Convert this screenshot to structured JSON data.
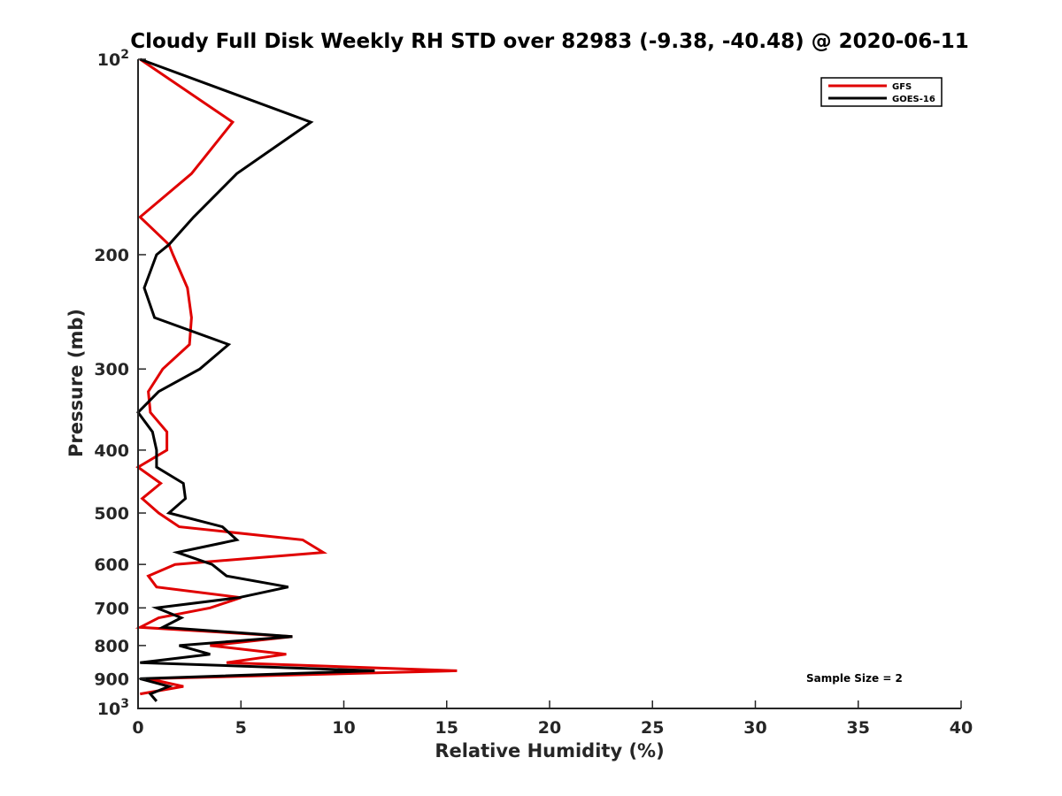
{
  "chart_data": {
    "type": "line",
    "title": "Cloudy Full Disk Weekly RH STD over 82983 (-9.38, -40.48) @ 2020-06-11",
    "xlabel": "Relative Humidity (%)",
    "ylabel": "Pressure (mb)",
    "xlim": [
      0,
      40
    ],
    "ylim": [
      100,
      1000
    ],
    "y_scale": "log",
    "y_reversed": true,
    "grid": false,
    "legend_placement": "top-right",
    "x_ticks": [
      "0",
      "5",
      "10",
      "15",
      "20",
      "25",
      "30",
      "35",
      "40"
    ],
    "y_ticks": [
      {
        "value": 100,
        "base": "10",
        "exp": "2"
      },
      {
        "value": 200,
        "label": "200"
      },
      {
        "value": 300,
        "label": "300"
      },
      {
        "value": 400,
        "label": "400"
      },
      {
        "value": 500,
        "label": "500"
      },
      {
        "value": 600,
        "label": "600"
      },
      {
        "value": 700,
        "label": "700"
      },
      {
        "value": 800,
        "label": "800"
      },
      {
        "value": 900,
        "label": "900"
      },
      {
        "value": 1000,
        "base": "10",
        "exp": "3"
      }
    ],
    "annotation": "Sample Size = 2",
    "series": [
      {
        "name": "GFS",
        "color": "#e00000",
        "points": [
          [
            0.1,
            100
          ],
          [
            4.6,
            125
          ],
          [
            2.6,
            150
          ],
          [
            0.1,
            175
          ],
          [
            1.5,
            193
          ],
          [
            1.7,
            200
          ],
          [
            2.4,
            225
          ],
          [
            2.6,
            250
          ],
          [
            2.5,
            275
          ],
          [
            1.2,
            300
          ],
          [
            0.5,
            325
          ],
          [
            0.6,
            350
          ],
          [
            1.4,
            375
          ],
          [
            1.4,
            400
          ],
          [
            0.0,
            425
          ],
          [
            1.1,
            450
          ],
          [
            0.2,
            475
          ],
          [
            1.0,
            500
          ],
          [
            2.0,
            525
          ],
          [
            8.0,
            550
          ],
          [
            9.0,
            575
          ],
          [
            1.8,
            600
          ],
          [
            0.5,
            625
          ],
          [
            0.9,
            650
          ],
          [
            5.0,
            675
          ],
          [
            3.5,
            700
          ],
          [
            1.0,
            725
          ],
          [
            0.1,
            750
          ],
          [
            7.5,
            775
          ],
          [
            3.5,
            800
          ],
          [
            7.2,
            825
          ],
          [
            4.3,
            850
          ],
          [
            15.5,
            875
          ],
          [
            0.5,
            900
          ],
          [
            2.2,
            925
          ],
          [
            0.1,
            950
          ]
        ]
      },
      {
        "name": "GOES-16",
        "color": "#000000",
        "points": [
          [
            0.1,
            100
          ],
          [
            8.4,
            125
          ],
          [
            4.8,
            150
          ],
          [
            2.7,
            175
          ],
          [
            1.5,
            193
          ],
          [
            0.9,
            200
          ],
          [
            0.3,
            225
          ],
          [
            0.8,
            250
          ],
          [
            4.4,
            275
          ],
          [
            3.0,
            300
          ],
          [
            1.0,
            325
          ],
          [
            0.0,
            350
          ],
          [
            0.7,
            375
          ],
          [
            0.9,
            400
          ],
          [
            0.9,
            425
          ],
          [
            2.2,
            450
          ],
          [
            2.3,
            475
          ],
          [
            1.5,
            500
          ],
          [
            4.1,
            525
          ],
          [
            4.8,
            550
          ],
          [
            1.9,
            575
          ],
          [
            3.6,
            600
          ],
          [
            4.3,
            625
          ],
          [
            7.3,
            650
          ],
          [
            4.9,
            675
          ],
          [
            0.9,
            700
          ],
          [
            2.1,
            725
          ],
          [
            1.2,
            750
          ],
          [
            7.5,
            775
          ],
          [
            2.0,
            800
          ],
          [
            3.5,
            825
          ],
          [
            0.1,
            850
          ],
          [
            11.5,
            875
          ],
          [
            0.1,
            900
          ],
          [
            1.5,
            925
          ],
          [
            0.6,
            950
          ],
          [
            0.9,
            975
          ]
        ]
      }
    ]
  }
}
